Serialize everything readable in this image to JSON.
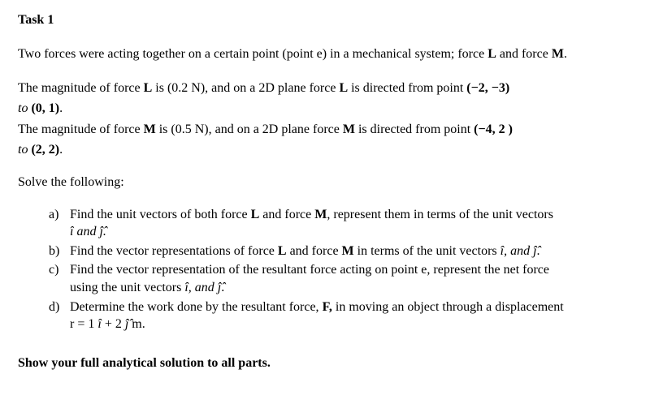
{
  "title": "Task 1",
  "intro": {
    "p1_a": "Two forces were acting together on a certain point (point e) in a mechanical system; force ",
    "L": "L",
    "p1_b": " and force ",
    "M": "M",
    "p1_c": "."
  },
  "forceL": {
    "a": "The magnitude of force ",
    "L": "L",
    "b": " is (0.2 N), and on a 2D plane force ",
    "L2": "L",
    "c": " is directed from point ",
    "pt1": "(−2, −3)",
    "to": "to ",
    "pt2": "(0, 1)",
    "dot": "."
  },
  "forceM": {
    "a": "The magnitude of force ",
    "M": "M",
    "b": " is (0.5 N), and on a 2D plane force ",
    "M2": "M",
    "c": " is directed from point ",
    "pt1": "(−4, 2 )",
    "to": "to ",
    "pt2": "(2, 2)",
    "dot": "."
  },
  "solve": "Solve the following:",
  "items": {
    "a_marker": "a)",
    "a_1": "Find the unit vectors of both force ",
    "a_L": "L",
    "a_2": " and force ",
    "a_M": "M",
    "a_3": ", represent them in terms of the unit vectors",
    "a_sub": "î  and ĵ̂.",
    "b_marker": "b)",
    "b_1": "Find the vector representations of force ",
    "b_L": "L",
    "b_2": " and force ",
    "b_M": "M",
    "b_3": " in terms of the unit vectors ",
    "b_ij": "î, and ĵ̂",
    "b_dot": ".",
    "c_marker": "c)",
    "c_1": "Find the vector representation of the resultant force acting on point e, represent the net force",
    "c_2a": "using the unit vectors ",
    "c_ij": "î, and ĵ̂",
    "c_dot": ".",
    "d_marker": "d)",
    "d_1": "Determine the work done by the resultant force, ",
    "d_F": "F,",
    "d_2": " in moving an object through a displacement",
    "d_3a": "r = 1 ",
    "d_i": "î",
    "d_3b": " + 2 ",
    "d_j": "ĵ̂",
    "d_3c": " m."
  },
  "show": "Show your full analytical solution to all parts."
}
